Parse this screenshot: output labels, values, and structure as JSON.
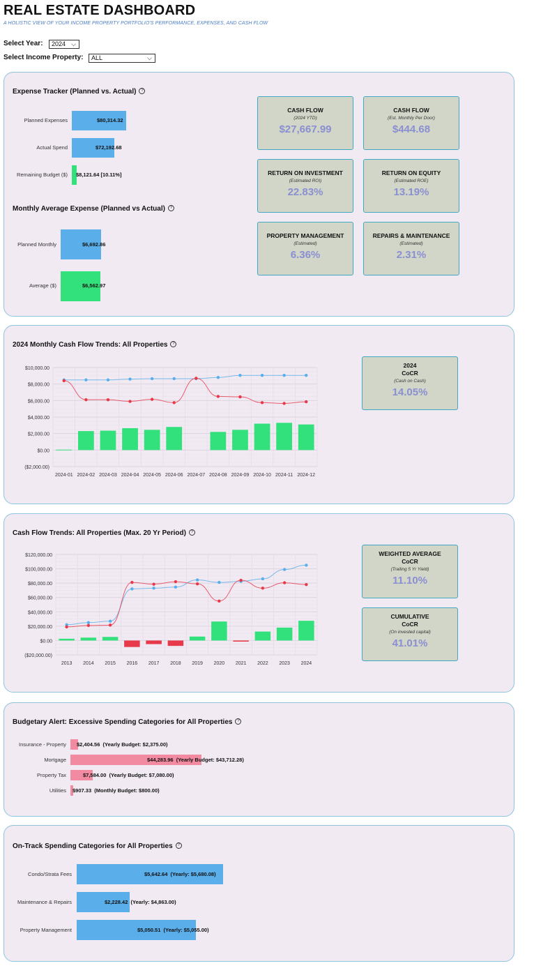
{
  "header": {
    "title": "REAL ESTATE DASHBOARD",
    "subtitle": "A HOLISTIC VIEW OF YOUR INCOME PROPERTY PORTFOLIO'S PERFORMANCE, EXPENSES, AND CASH FLOW"
  },
  "filters": {
    "year_label": "Select Year:",
    "year_value": "2024",
    "property_label": "Select Income Property:",
    "property_value": "ALL"
  },
  "colors": {
    "blue": "#5aaeea",
    "green": "#32e07c",
    "red": "#e8394a",
    "pink": "#f28aa1",
    "kpi_bg": "#d2d6c8",
    "kpi_value": "#8a8fd1",
    "panel_bg": "#f1eaf3"
  },
  "expense_tracker": {
    "title": "Expense Tracker (Planned vs. Actual)",
    "rows": [
      {
        "label": "Planned Expenses",
        "value_text": "$80,314.32",
        "value": 80314.32
      },
      {
        "label": "Actual Spend",
        "value_text": "$72,192.68",
        "value": 72192.68
      },
      {
        "label": "Remaining Budget ($)",
        "value_text": "$8,121.64 [10.11%]",
        "value": 8121.64
      }
    ]
  },
  "monthly_avg": {
    "title": "Monthly Average Expense (Planned vs Actual)",
    "rows": [
      {
        "label": "Planned Monthly",
        "value_text": "$6,692.86",
        "value": 6692.86
      },
      {
        "label": "Average ($)",
        "value_text": "$6,562.97",
        "value": 6562.97
      }
    ]
  },
  "kpis": [
    {
      "title": "CASH FLOW",
      "sub": "(2024 YTD)",
      "value": "$27,667.99"
    },
    {
      "title": "CASH FLOW",
      "sub": "(Est. Monthly Per Door)",
      "value": "$444.68"
    },
    {
      "title": "RETURN ON INVESTMENT",
      "sub": "(Estimated ROI)",
      "value": "22.83%"
    },
    {
      "title": "RETURN ON EQUITY",
      "sub": "(Estimated ROE)",
      "value": "13.19%"
    },
    {
      "title": "PROPERTY MANAGEMENT",
      "sub": "(Estimated)",
      "value": "6.36%"
    },
    {
      "title": "REPAIRS & MAINTENANCE",
      "sub": "(Estimated)",
      "value": "2.31%"
    }
  ],
  "monthly_trends": {
    "title": "2024 Monthly Cash Flow Trends: All Properties",
    "kpi": {
      "title1": "2024",
      "title2": "CoCR",
      "sub": "(Cash on Cash)",
      "value": "14.05%"
    }
  },
  "yearly_trends": {
    "title": "Cash Flow Trends: All Properties (Max. 20 Yr Period)",
    "kpis": [
      {
        "title1": "WEIGHTED AVERAGE",
        "title2": "CoCR",
        "sub": "(Trailing 5 Yr Yield)",
        "value": "11.10%"
      },
      {
        "title1": "CUMULATIVE",
        "title2": "CoCR",
        "sub": "(On invested capital)",
        "value": "41.01%"
      }
    ]
  },
  "chart_data": [
    {
      "type": "bar",
      "overlay": "line",
      "categories": [
        "2024-01",
        "2024-02",
        "2024-03",
        "2024-04",
        "2024-05",
        "2024-06",
        "2024-07",
        "2024-08",
        "2024-09",
        "2024-10",
        "2024-11",
        "2024-12"
      ],
      "series": [
        {
          "type": "bar",
          "values": [
            50,
            2300,
            2350,
            2650,
            2450,
            2800,
            0,
            2200,
            2450,
            3200,
            3300,
            3100
          ]
        },
        {
          "type": "line",
          "values": [
            8500,
            8500,
            8500,
            8600,
            8650,
            8650,
            8650,
            8800,
            9050,
            9050,
            9050,
            9050
          ]
        },
        {
          "type": "line",
          "values": [
            8400,
            6100,
            6100,
            5900,
            6150,
            5750,
            8700,
            6500,
            6450,
            5750,
            5650,
            5850
          ]
        }
      ],
      "ylim": [
        -2000,
        10000
      ],
      "yticks": [
        "$10,000.00",
        "$8,000.00",
        "$6,000.00",
        "$4,000.00",
        "$2,000.00",
        "$0.00",
        "($2,000.00)"
      ],
      "grid": true
    },
    {
      "type": "bar",
      "overlay": "line",
      "categories": [
        "2013",
        "2014",
        "2015",
        "2016",
        "2017",
        "2018",
        "2019",
        "2020",
        "2021",
        "2022",
        "2023",
        "2024"
      ],
      "series": [
        {
          "type": "bar",
          "values": [
            2500,
            4000,
            5000,
            -9000,
            -5000,
            -7500,
            5500,
            26500,
            -1500,
            12500,
            18000,
            27500
          ]
        },
        {
          "type": "line",
          "values": [
            22000,
            25000,
            27000,
            72000,
            73000,
            74500,
            84500,
            81000,
            82500,
            86000,
            99000,
            105000
          ]
        },
        {
          "type": "line",
          "values": [
            19000,
            21000,
            21500,
            81000,
            78500,
            82000,
            79000,
            55000,
            84000,
            73000,
            80500,
            78000
          ]
        }
      ],
      "ylim": [
        -20000,
        120000
      ],
      "yticks": [
        "$120,000.00",
        "$100,000.00",
        "$80,000.00",
        "$60,000.00",
        "$40,000.00",
        "$20,000.00",
        "$0.00",
        "($20,000.00)"
      ],
      "grid": true
    }
  ],
  "budget_alert": {
    "title": "Budgetary Alert: Excessive Spending Categories for All Properties",
    "rows": [
      {
        "label": "Insurance - Property",
        "value_text": "$2,404.56",
        "budget_text": "(Yearly Budget: $2,375.00)",
        "value": 2404.56
      },
      {
        "label": "Mortgage",
        "value_text": "$44,283.96",
        "budget_text": "(Yearly Budget: $43,712.28)",
        "value": 44283.96
      },
      {
        "label": "Property Tax",
        "value_text": "$7,584.00",
        "budget_text": "(Yearly Budget: $7,080.00)",
        "value": 7584.0
      },
      {
        "label": "Utilities",
        "value_text": "$907.33",
        "budget_text": "(Monthly Budget: $800.00)",
        "value": 907.33
      }
    ]
  },
  "on_track": {
    "title": "On-Track Spending Categories for All Properties",
    "rows": [
      {
        "label": "Condo/Strata Fees",
        "value_text": "$5,642.64",
        "budget_text": "(Yearly: $5,680.08)",
        "value": 5642.64
      },
      {
        "label": "Maintenance & Repairs",
        "value_text": "$2,228.42",
        "budget_text": "(Yearly: $4,863.00)",
        "value": 2228.42
      },
      {
        "label": "Property Management",
        "value_text": "$5,050.51",
        "budget_text": "(Yearly: $5,055.00)",
        "value": 5050.51
      }
    ]
  }
}
